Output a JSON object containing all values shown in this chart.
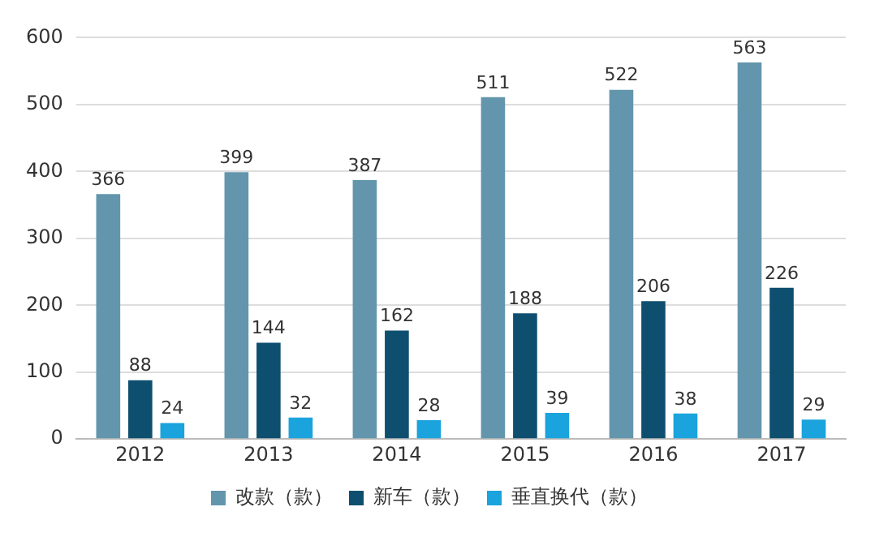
{
  "chart_data": {
    "type": "bar",
    "categories": [
      "2012",
      "2013",
      "2014",
      "2015",
      "2016",
      "2017"
    ],
    "series": [
      {
        "name": "改款（款）",
        "color": "#6396ad",
        "values": [
          366,
          399,
          387,
          511,
          522,
          563
        ]
      },
      {
        "name": "新车（款）",
        "color": "#0e4f6f",
        "values": [
          88,
          144,
          162,
          188,
          206,
          226
        ]
      },
      {
        "name": "垂直换代（款）",
        "color": "#1aa3dc",
        "values": [
          24,
          32,
          28,
          39,
          38,
          29
        ]
      }
    ],
    "ylim": [
      0,
      600
    ],
    "yticks": [
      0,
      100,
      200,
      300,
      400,
      500,
      600
    ],
    "grid": "y",
    "legend": "bottom",
    "data_labels": true
  }
}
